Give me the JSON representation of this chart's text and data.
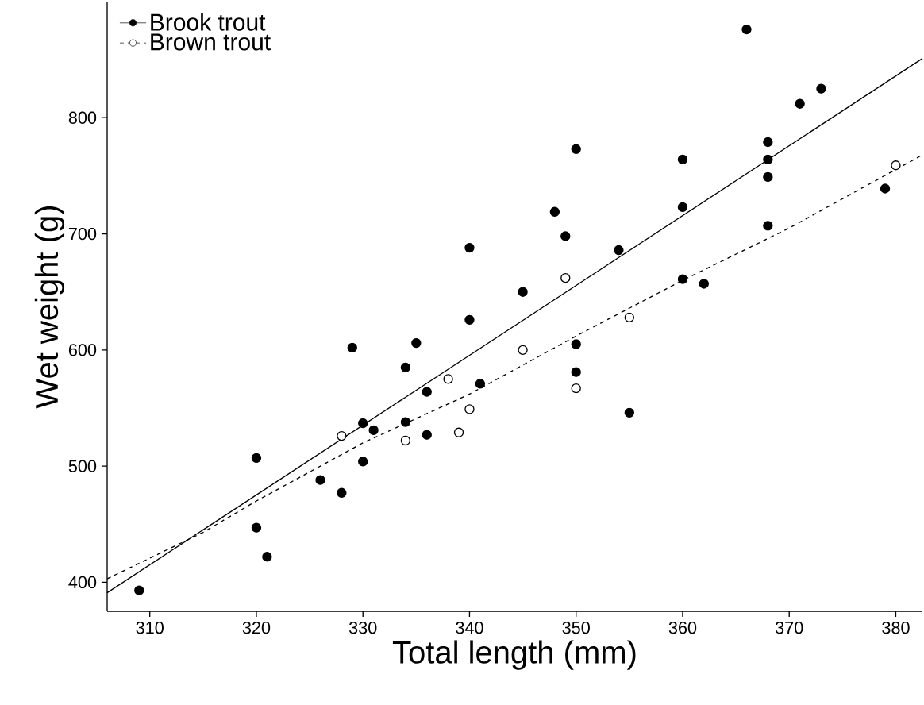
{
  "chart_data": {
    "type": "scatter",
    "xlabel": "Total length (mm)",
    "ylabel": "Wet weight (g)",
    "xlim": [
      306,
      382.5
    ],
    "ylim": [
      375,
      900
    ],
    "xticks": [
      310,
      320,
      330,
      340,
      350,
      360,
      370,
      380
    ],
    "yticks": [
      400,
      500,
      600,
      700,
      800
    ],
    "grid": false,
    "legend": "top left",
    "marker": "circle",
    "series": [
      {
        "name": "Brook trout",
        "color": "#000000",
        "line_style": "solid",
        "x": [
          309,
          320,
          320,
          321,
          326,
          328,
          329,
          330,
          330,
          331,
          334,
          334,
          335,
          336,
          336,
          340,
          340,
          341,
          345,
          348,
          349,
          350,
          350,
          350,
          354,
          355,
          360,
          360,
          360,
          362,
          366,
          368,
          368,
          368,
          368,
          371,
          373,
          379
        ],
        "values": [
          393,
          507,
          447,
          422,
          488,
          477,
          602,
          537,
          504,
          531,
          585,
          538,
          606,
          564,
          527,
          688,
          626,
          571,
          650,
          719,
          698,
          773,
          605,
          581,
          686,
          546,
          764,
          723,
          661,
          657,
          876,
          779,
          764,
          749,
          707,
          812,
          825,
          739
        ]
      },
      {
        "name": "Brown trout",
        "color": "#ffffff",
        "line_style": "dashed",
        "x": [
          328,
          334,
          338,
          339,
          340,
          345,
          349,
          350,
          355,
          380
        ],
        "values": [
          526,
          522,
          575,
          529,
          549,
          600,
          662,
          567,
          628,
          759
        ]
      },
      {
        "type": "line",
        "color": "#000000",
        "line_style": "solid",
        "marker": "none",
        "x": [
          306,
          382.5
        ],
        "values": [
          391,
          851
        ]
      },
      {
        "type": "line",
        "color": "#000000",
        "line_style": "dashed",
        "marker": "none",
        "x": [
          306,
          315,
          320,
          330,
          340,
          350,
          360,
          370,
          382.5
        ],
        "values": [
          403,
          443,
          470,
          520,
          562,
          612,
          660,
          705,
          768
        ]
      }
    ]
  }
}
